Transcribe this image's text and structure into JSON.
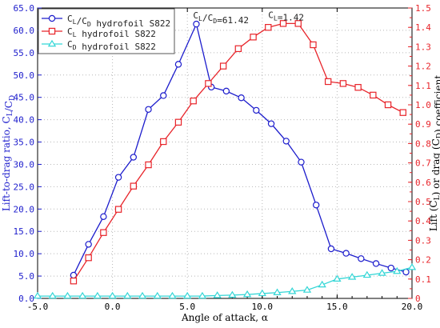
{
  "chart_data": {
    "type": "line",
    "xlabel": "Angle of attack, α",
    "ylabel_left": "Lift-to-drag ratio, C_L/C_D",
    "ylabel_right": "Lift (C_L) or drag (C_D) coefficient",
    "xlim": [
      -5,
      20
    ],
    "ylim_left": [
      0,
      65
    ],
    "ylim_right": [
      0,
      1.5
    ],
    "x_ticks": [
      "-5.0",
      "0.0",
      "5.0",
      "10.0",
      "15.0",
      "20.0"
    ],
    "y_left_ticks": [
      "0.0",
      "5.0",
      "10.0",
      "15.0",
      "20.0",
      "25.0",
      "30.0",
      "35.0",
      "40.0",
      "45.0",
      "50.0",
      "55.0",
      "60.0",
      "65.0"
    ],
    "y_right_ticks": [
      "0",
      "0.1",
      "0.2",
      "0.3",
      "0.4",
      "0.5",
      "0.6",
      "0.7",
      "0.8",
      "0.9",
      "1.0",
      "1.1",
      "1.2",
      "1.3",
      "1.4",
      "1.5"
    ],
    "grid": true,
    "legend_position": "top-left",
    "colors": {
      "ld": "#1c1ccc",
      "cl": "#e8242a",
      "cd": "#33d6d6",
      "left_axis": "#1c1ccc",
      "right_axis": "#e8242a"
    },
    "series": [
      {
        "name": "C_L/C_D hydrofoil S822",
        "axis": "left",
        "marker": "circle",
        "x": [
          -2.6,
          -1.6,
          -0.6,
          0.4,
          1.4,
          2.4,
          3.4,
          4.4,
          5.6,
          6.6,
          7.6,
          8.6,
          9.6,
          10.6,
          11.6,
          12.6,
          13.6,
          14.6,
          15.6,
          16.6,
          17.6,
          18.6,
          19.6
        ],
        "y": [
          5.2,
          12.1,
          18.3,
          27.1,
          31.6,
          42.3,
          45.4,
          52.4,
          61.4,
          47.3,
          46.4,
          44.9,
          42.1,
          39.1,
          35.2,
          30.5,
          20.9,
          11.1,
          10.1,
          8.9,
          7.8,
          6.8,
          5.9
        ]
      },
      {
        "name": "C_L hydrofoil S822",
        "axis": "right",
        "marker": "square",
        "x": [
          -2.6,
          -1.6,
          -0.6,
          0.4,
          1.4,
          2.4,
          3.4,
          4.4,
          5.4,
          6.4,
          7.4,
          8.4,
          9.4,
          10.4,
          11.4,
          12.4,
          13.4,
          14.4,
          15.4,
          16.4,
          17.4,
          18.4,
          19.4
        ],
        "y": [
          0.09,
          0.21,
          0.34,
          0.46,
          0.58,
          0.69,
          0.81,
          0.91,
          1.02,
          1.11,
          1.2,
          1.29,
          1.35,
          1.4,
          1.42,
          1.42,
          1.31,
          1.12,
          1.11,
          1.09,
          1.05,
          1.0,
          0.96
        ]
      },
      {
        "name": "C_D hydrofoil S822",
        "axis": "right",
        "marker": "triangle",
        "x": [
          -5.0,
          -4.0,
          -3.0,
          -2.0,
          -1.0,
          0.0,
          1.0,
          2.0,
          3.0,
          4.0,
          5.0,
          6.0,
          7.0,
          8.0,
          9.0,
          10.0,
          11.0,
          12.0,
          13.0,
          14.0,
          15.0,
          16.0,
          17.0,
          18.0,
          19.0,
          20.0
        ],
        "y": [
          0.012,
          0.012,
          0.012,
          0.012,
          0.012,
          0.012,
          0.012,
          0.012,
          0.012,
          0.012,
          0.012,
          0.012,
          0.015,
          0.017,
          0.02,
          0.025,
          0.03,
          0.036,
          0.043,
          0.07,
          0.1,
          0.11,
          0.12,
          0.13,
          0.14,
          0.16
        ]
      }
    ],
    "annotations": [
      {
        "text": "C_L/C_D=61.42",
        "x": 5.6,
        "y": 61.4,
        "axis": "left"
      },
      {
        "text": "C_L=1.42",
        "x": 12.0,
        "y": 1.42,
        "axis": "right"
      }
    ]
  }
}
